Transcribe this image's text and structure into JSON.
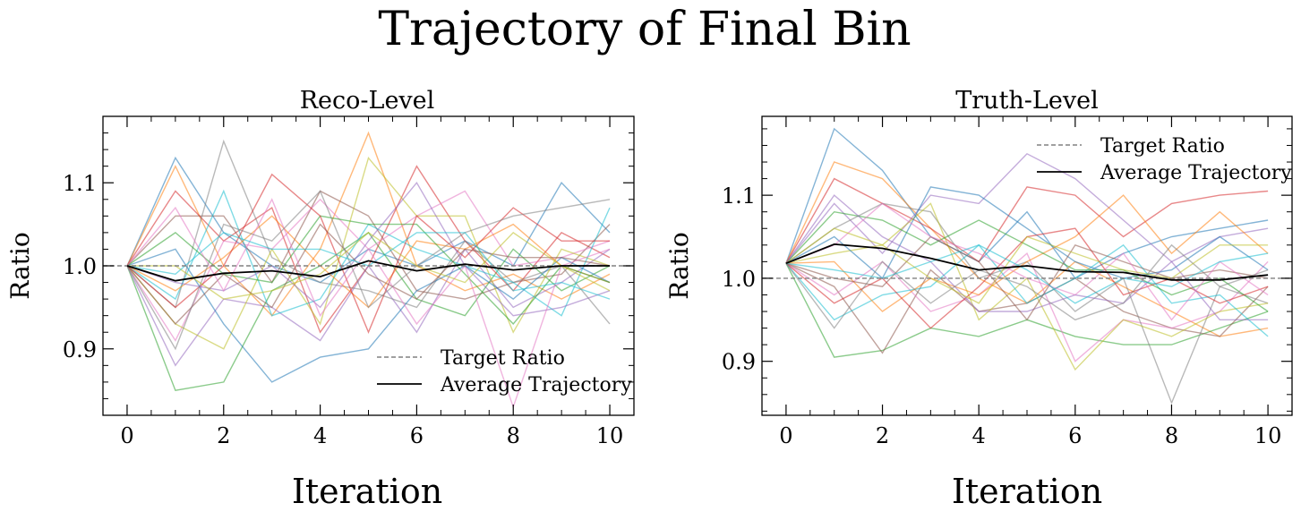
{
  "figure": {
    "title": "Trajectory of Final Bin"
  },
  "chart_data": [
    {
      "type": "line",
      "title": "Reco-Level",
      "xlabel": "Iteration",
      "ylabel": "Ratio",
      "xlim": [
        -0.5,
        10.5
      ],
      "ylim": [
        0.82,
        1.18
      ],
      "xticks": [
        0,
        2,
        4,
        6,
        8,
        10
      ],
      "xtick_labels": [
        "0",
        "2",
        "4",
        "6",
        "8",
        "10"
      ],
      "yticks": [
        0.9,
        1.0,
        1.1
      ],
      "ytick_labels": [
        "0.9",
        "1.0",
        "1.1"
      ],
      "x": [
        0,
        1,
        2,
        3,
        4,
        5,
        6,
        7,
        8,
        9,
        10
      ],
      "target_ratio": 1.0,
      "legend": {
        "placement": "lower-right",
        "entries": [
          "Target Ratio",
          "Average Trajectory"
        ]
      },
      "average_trajectory": [
        1.0,
        0.982,
        0.991,
        0.994,
        0.987,
        1.006,
        0.994,
        1.002,
        0.995,
        1.0,
        1.0
      ],
      "trajectories": [
        [
          1.0,
          1.13,
          1.04,
          1.0,
          0.98,
          1.02,
          1.0,
          1.03,
          1.0,
          1.1,
          1.04
        ],
        [
          1.0,
          1.12,
          1.0,
          0.94,
          1.02,
          1.16,
          1.0,
          0.97,
          0.99,
          0.96,
          0.99
        ],
        [
          1.0,
          0.85,
          0.86,
          0.97,
          1.0,
          1.04,
          0.96,
          0.94,
          1.02,
          0.97,
          1.0
        ],
        [
          1.0,
          1.09,
          1.03,
          1.07,
          0.92,
          1.0,
          1.12,
          1.03,
          0.97,
          1.04,
          1.01
        ],
        [
          1.0,
          0.88,
          0.96,
          0.95,
          0.91,
          1.0,
          0.92,
          1.02,
          0.95,
          0.98,
          1.02
        ],
        [
          1.0,
          1.06,
          1.06,
          0.98,
          1.09,
          1.06,
          0.97,
          0.96,
          0.98,
          0.99,
          1.05
        ],
        [
          1.0,
          0.91,
          1.03,
          1.02,
          1.08,
          1.02,
          1.06,
          1.09,
          1.0,
          1.01,
          1.03
        ],
        [
          1.0,
          0.95,
          1.15,
          1.01,
          0.98,
          0.97,
          0.95,
          1.03,
          0.98,
          1.0,
          0.93
        ],
        [
          1.0,
          0.93,
          0.9,
          1.02,
          0.93,
          1.13,
          1.06,
          1.06,
          0.92,
          1.02,
          1.0
        ],
        [
          1.0,
          0.96,
          1.09,
          0.94,
          0.96,
          1.05,
          1.02,
          1.0,
          0.98,
          0.94,
          1.07
        ],
        [
          1.0,
          1.02,
          0.93,
          0.86,
          0.89,
          0.9,
          0.97,
          1.0,
          0.96,
          1.01,
          0.98
        ],
        [
          1.0,
          0.97,
          1.01,
          1.06,
          1.0,
          0.95,
          1.03,
          1.02,
          1.05,
          1.0,
          0.98
        ],
        [
          1.0,
          1.04,
          0.99,
          0.98,
          1.06,
          1.05,
          1.05,
          0.99,
          0.93,
          1.0,
          0.98
        ],
        [
          1.0,
          0.95,
          1.0,
          1.11,
          1.06,
          0.92,
          1.06,
          1.01,
          1.07,
          1.03,
          1.03
        ],
        [
          1.0,
          0.98,
          0.97,
          1.0,
          0.95,
          1.03,
          1.1,
          1.0,
          0.94,
          0.95,
          0.97
        ],
        [
          1.0,
          0.93,
          0.99,
          0.95,
          1.05,
          0.99,
          0.96,
          1.02,
          1.01,
          1.01,
          1.0
        ],
        [
          1.0,
          1.07,
          0.97,
          1.08,
          0.94,
          1.02,
          0.93,
          1.0,
          0.83,
          1.0,
          1.02
        ],
        [
          1.0,
          0.9,
          1.05,
          1.03,
          1.09,
          0.95,
          1.0,
          1.04,
          1.06,
          1.07,
          1.08
        ],
        [
          1.0,
          1.0,
          0.96,
          0.97,
          0.99,
          1.04,
          1.0,
          0.98,
          1.04,
          1.0,
          0.97
        ],
        [
          1.0,
          0.99,
          1.04,
          1.02,
          1.02,
          1.0,
          1.04,
          1.04,
          0.97,
          0.98,
          0.96
        ]
      ]
    },
    {
      "type": "line",
      "title": "Truth-Level",
      "xlabel": "Iteration",
      "ylabel": "Ratio",
      "xlim": [
        -0.5,
        10.5
      ],
      "ylim": [
        0.835,
        1.195
      ],
      "xticks": [
        0,
        2,
        4,
        6,
        8,
        10
      ],
      "xtick_labels": [
        "0",
        "2",
        "4",
        "6",
        "8",
        "10"
      ],
      "yticks": [
        0.9,
        1.0,
        1.1
      ],
      "ytick_labels": [
        "0.9",
        "1.0",
        "1.1"
      ],
      "x": [
        0,
        1,
        2,
        3,
        4,
        5,
        6,
        7,
        8,
        9,
        10
      ],
      "target_ratio": 1.0,
      "legend": {
        "placement": "upper-right",
        "entries": [
          "Target Ratio",
          "Average Trajectory"
        ]
      },
      "average_trajectory": [
        1.018,
        1.041,
        1.036,
        1.024,
        1.01,
        1.015,
        1.008,
        1.007,
        0.998,
        0.998,
        1.004
      ],
      "trajectories": [
        [
          1.018,
          1.18,
          1.13,
          1.05,
          1.02,
          1.08,
          1.0,
          1.03,
          1.05,
          1.06,
          1.07
        ],
        [
          1.018,
          1.14,
          1.12,
          1.06,
          1.0,
          0.97,
          1.02,
          0.99,
          0.96,
          0.93,
          0.94
        ],
        [
          1.018,
          0.905,
          0.913,
          0.94,
          0.93,
          0.95,
          0.93,
          0.92,
          0.92,
          0.94,
          0.96
        ],
        [
          1.018,
          1.12,
          1.09,
          1.06,
          1.02,
          1.11,
          1.1,
          1.05,
          1.09,
          1.1,
          1.105
        ],
        [
          1.018,
          1.09,
          1.03,
          1.1,
          1.09,
          1.15,
          1.12,
          1.07,
          1.02,
          1.05,
          1.06
        ],
        [
          1.018,
          0.99,
          0.91,
          1.01,
          0.96,
          0.97,
          1.0,
          0.96,
          0.94,
          0.93,
          0.99
        ],
        [
          1.018,
          0.98,
          1.02,
          0.96,
          0.98,
          1.03,
          0.9,
          0.95,
          0.94,
          0.96,
          1.02
        ],
        [
          1.018,
          1.06,
          1.09,
          1.08,
          1.0,
          1.02,
          0.96,
          1.0,
          0.85,
          0.99,
          0.97
        ],
        [
          1.018,
          1.03,
          1.04,
          1.09,
          0.95,
          1.0,
          0.89,
          0.95,
          0.93,
          0.96,
          0.97
        ],
        [
          1.018,
          0.95,
          0.98,
          0.99,
          1.04,
          0.97,
          1.0,
          1.04,
          0.97,
          0.98,
          0.93
        ],
        [
          1.018,
          1.05,
          1.0,
          1.11,
          1.1,
          1.06,
          1.02,
          1.0,
          1.01,
          1.05,
          1.01
        ],
        [
          1.018,
          1.02,
          0.96,
          1.0,
          0.98,
          1.02,
          1.05,
          1.1,
          1.03,
          1.08,
          1.03
        ],
        [
          1.018,
          1.08,
          1.07,
          1.04,
          1.07,
          1.04,
          1.01,
          1.01,
          0.98,
          1.0,
          0.96
        ],
        [
          1.018,
          0.97,
          1.0,
          0.94,
          0.99,
          1.05,
          1.06,
          0.98,
          1.0,
          0.97,
          0.99
        ],
        [
          1.018,
          1.1,
          1.05,
          1.02,
          0.96,
          0.96,
          0.98,
          0.97,
          1.02,
          0.95,
          0.95
        ],
        [
          1.018,
          1.0,
          0.99,
          1.05,
          1.02,
          0.95,
          1.04,
          1.02,
          1.0,
          1.01,
          1.0
        ],
        [
          1.018,
          1.04,
          1.09,
          1.05,
          1.03,
          1.0,
          0.98,
          1.03,
          0.95,
          1.02,
          0.98
        ],
        [
          1.018,
          0.94,
          1.02,
          0.97,
          1.01,
          0.99,
          0.95,
          0.97,
          1.04,
          0.99,
          1.01
        ],
        [
          1.018,
          1.06,
          1.04,
          1.0,
          0.97,
          1.05,
          1.03,
          1.01,
          1.0,
          1.04,
          1.04
        ],
        [
          1.018,
          1.01,
          1.0,
          1.02,
          1.04,
          1.01,
          0.97,
          1.0,
          0.99,
          1.02,
          1.03
        ]
      ]
    }
  ],
  "colors": {
    "series": [
      "#1f77b4",
      "#ff7f0e",
      "#2ca02c",
      "#d62728",
      "#9467bd",
      "#8c564b",
      "#e377c2",
      "#7f7f7f",
      "#bcbd22",
      "#17becf"
    ],
    "target_line": "#808080",
    "average_line": "#000000"
  }
}
